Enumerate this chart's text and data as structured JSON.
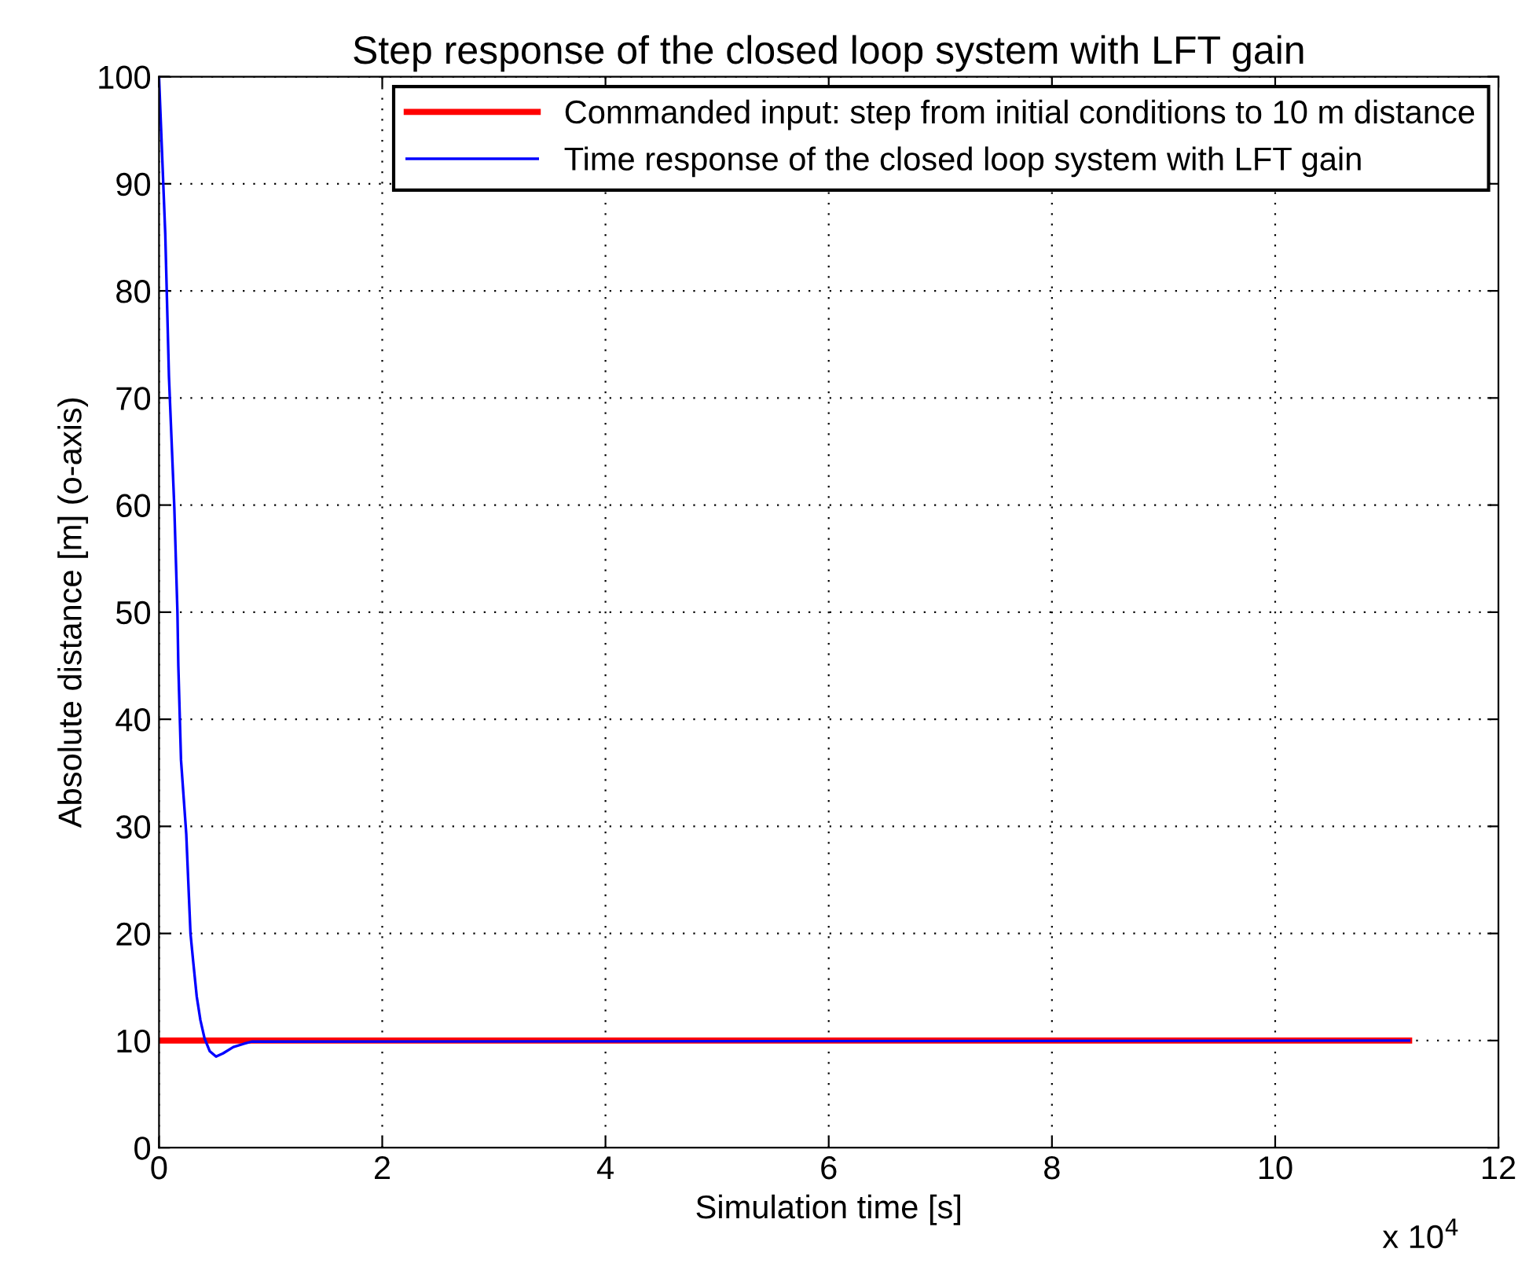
{
  "chart_data": {
    "type": "line",
    "title": "Step response of the closed loop system with LFT gain",
    "xlabel": "Simulation time [s]",
    "ylabel": "Absolute distance [m] (o-axis)",
    "annotations": [
      "x 10$^{4}$"
    ],
    "series": [
      {
        "name": "Commanded input: step from initial conditions to 10 m distance",
        "color": "#ff0000",
        "x": [
          0,
          11.2
        ],
        "values": [
          10,
          10
        ]
      },
      {
        "name": "Time response of the closed loop system with LFT gain",
        "color": "#0000ff",
        "x": [
          0,
          0.056,
          0.089,
          0.137,
          0.165,
          0.173,
          0.197,
          0.244,
          0.268,
          0.282,
          0.305,
          0.338,
          0.371,
          0.408,
          0.455,
          0.511,
          0.573,
          0.666,
          0.761,
          0.831,
          11.2
        ],
        "values": [
          100,
          85.3,
          72,
          59.8,
          50,
          45,
          36.2,
          29.3,
          23.4,
          20,
          17.5,
          14.1,
          11.9,
          10.2,
          9.0,
          8.5,
          8.8,
          9.4,
          9.7,
          9.9,
          10
        ]
      }
    ],
    "xlim": [
      0,
      12
    ],
    "xticks": [
      0,
      2,
      4,
      6,
      8,
      10,
      12
    ],
    "ylim": [
      0,
      100
    ],
    "yticks": [
      0,
      10,
      20,
      30,
      40,
      50,
      60,
      70,
      80,
      90,
      100
    ],
    "grid": true,
    "legend": "top right",
    "marker": "none",
    "line_style": "solid"
  }
}
